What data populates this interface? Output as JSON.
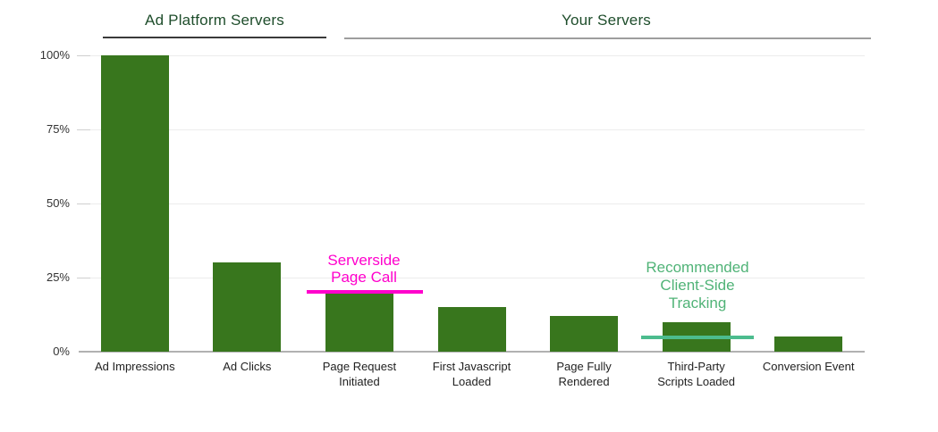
{
  "chart_data": {
    "type": "bar",
    "title": "",
    "categories": [
      "Ad Impressions",
      "Ad Clicks",
      "Page Request\nInitiated",
      "First Javascript\nLoaded",
      "Page Fully\nRendered",
      "Third-Party\nScripts Loaded",
      "Conversion Event"
    ],
    "values": [
      100,
      30,
      20,
      15,
      12,
      10,
      5
    ],
    "unit": "%",
    "ylim": [
      0,
      100
    ],
    "yticks": [
      {
        "value": 0,
        "label": "0%"
      },
      {
        "value": 25,
        "label": "25%"
      },
      {
        "value": 50,
        "label": "50%"
      },
      {
        "value": 75,
        "label": "75%"
      },
      {
        "value": 100,
        "label": "100%"
      }
    ],
    "grid": true,
    "legend": "none",
    "bar_color": "#38761d",
    "groups": [
      {
        "label": "Ad Platform Servers",
        "categories": [
          "Ad Impressions",
          "Ad Clicks"
        ],
        "underline_color": "#3a3a3a"
      },
      {
        "label": "Your Servers",
        "categories": [
          "Page Request Initiated",
          "First Javascript Loaded",
          "Page Fully Rendered",
          "Third-Party Scripts Loaded",
          "Conversion Event"
        ],
        "underline_color": "#9e9e9e"
      }
    ],
    "annotations": [
      {
        "text": "Serverside\nPage Call",
        "target": "Page Request Initiated",
        "color": "#ff00cc",
        "line_color": "#ff00cc",
        "line_value_pct": 20.5
      },
      {
        "text": "Recommended\nClient-Side\nTracking",
        "target": "Third-Party Scripts Loaded",
        "color": "#50b377",
        "line_color": "#4cbc8e",
        "line_value_pct": 6
      }
    ],
    "header_color": "#1e4d2b",
    "axis_colors": {
      "ylabel": "#333333",
      "xlabel": "#222222",
      "gridline": "#ececec",
      "baseline": "#b1b1b1",
      "tick": "#cfcfcf"
    }
  }
}
